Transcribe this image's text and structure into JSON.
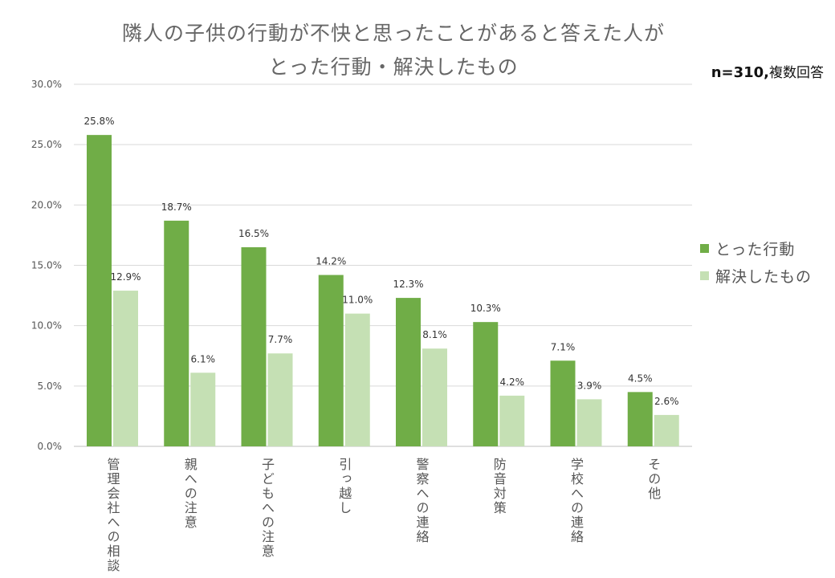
{
  "colors": {
    "series_0": "#70ad47",
    "series_1": "#c5e0b4",
    "grid": "#d9d9d9",
    "axis": "#bfbfbf"
  },
  "note": {
    "n_label": "n=310,",
    "multi_label": "複数回答"
  },
  "chart_data": {
    "type": "bar",
    "title_line_1": "隣人の子供の行動が不快と思ったことがあると答えた人が",
    "title_line_2": "とった行動・解決したもの",
    "categories": [
      "管理会社への相談",
      "親への注意",
      "子どもへの注意",
      "引っ越し",
      "警察への連絡",
      "防音対策",
      "学校への連絡",
      "その他"
    ],
    "series": [
      {
        "name": "とった行動",
        "values": [
          25.8,
          18.7,
          16.5,
          14.2,
          12.3,
          10.3,
          7.1,
          4.5
        ],
        "labels": [
          "25.8%",
          "18.7%",
          "16.5%",
          "14.2%",
          "12.3%",
          "10.3%",
          "7.1%",
          "4.5%"
        ]
      },
      {
        "name": "解決したもの",
        "values": [
          12.9,
          6.1,
          7.7,
          11.0,
          8.1,
          4.2,
          3.9,
          2.6
        ],
        "labels": [
          "12.9%",
          "6.1%",
          "7.7%",
          "11.0%",
          "8.1%",
          "4.2%",
          "3.9%",
          "2.6%"
        ]
      }
    ],
    "ylim": [
      0,
      30
    ],
    "yticks": [
      0,
      5,
      10,
      15,
      20,
      25,
      30
    ],
    "ytick_labels": [
      "0.0%",
      "5.0%",
      "10.0%",
      "15.0%",
      "20.0%",
      "25.0%",
      "30.0%"
    ],
    "grid": true,
    "legend_position": "right"
  }
}
